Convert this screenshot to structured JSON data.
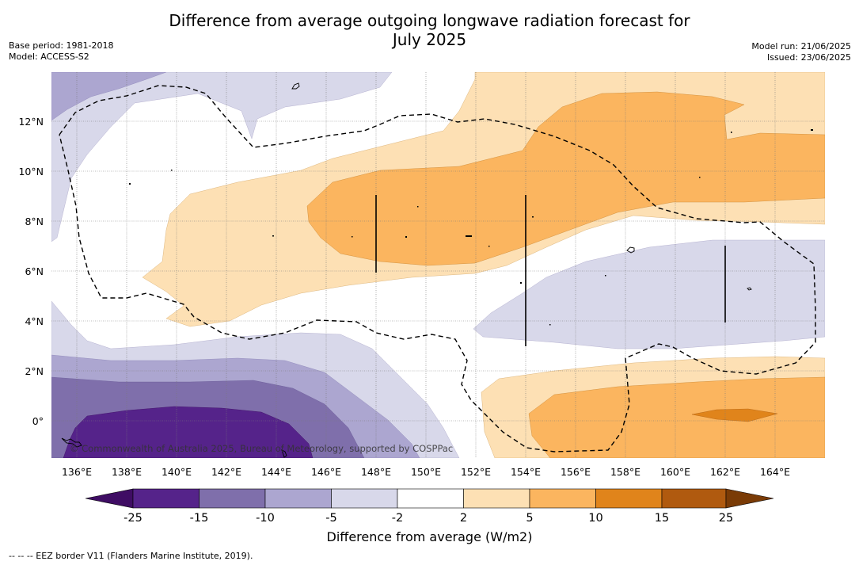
{
  "header": {
    "title_line1": "Difference from average outgoing longwave radiation forecast for",
    "title_line2": "July 2025",
    "base_period": "Base period: 1981-2018",
    "model": "Model: ACCESS-S2",
    "model_run": "Model run: 21/06/2025",
    "issued": "Issued: 23/06/2025"
  },
  "map": {
    "lon_labels": [
      "136°E",
      "138°E",
      "140°E",
      "142°E",
      "144°E",
      "146°E",
      "148°E",
      "150°E",
      "152°E",
      "154°E",
      "156°E",
      "158°E",
      "160°E",
      "162°E",
      "164°E"
    ],
    "lat_labels": [
      "12°N",
      "10°N",
      "8°N",
      "6°N",
      "4°N",
      "2°N",
      "0°"
    ],
    "copyright": "© Commonwealth of Australia 2025, Bureau of Meteorology, supported by COSPPac"
  },
  "colorbar": {
    "colors": [
      "#3f0d64",
      "#55238a",
      "#7f6fab",
      "#aca6d0",
      "#d8d8ea",
      "#ffffff",
      "#fde0b4",
      "#fbb55f",
      "#e0841b",
      "#b05a0f",
      "#7a3b06"
    ],
    "tick_labels": [
      "-25",
      "-15",
      "-10",
      "-5",
      "-2",
      "2",
      "5",
      "10",
      "15",
      "25"
    ],
    "label": "Difference from average (W/m2)"
  },
  "footer": {
    "legend_text": "--  --  -- EEZ border V11 (Flanders Marine Institute, 2019)."
  }
}
